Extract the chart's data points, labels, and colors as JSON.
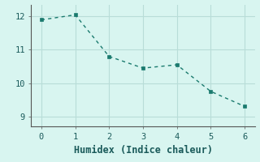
{
  "x": [
    0,
    1,
    2,
    3,
    4,
    5,
    6
  ],
  "y": [
    11.9,
    12.05,
    10.8,
    10.45,
    10.55,
    9.75,
    9.3
  ],
  "line_color": "#1a7a6e",
  "marker_color": "#1a7a6e",
  "background_color": "#d8f5f0",
  "grid_color": "#b8ddd8",
  "xlabel": "Humidex (Indice chaleur)",
  "xlim": [
    -0.3,
    6.3
  ],
  "ylim": [
    8.7,
    12.35
  ],
  "xticks": [
    0,
    1,
    2,
    3,
    4,
    5,
    6
  ],
  "yticks": [
    9,
    10,
    11,
    12
  ],
  "xlabel_fontsize": 8.5,
  "tick_fontsize": 7.5,
  "line_width": 1.0,
  "marker_size": 3.0
}
